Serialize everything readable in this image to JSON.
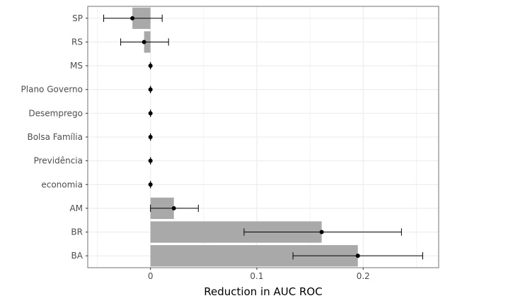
{
  "chart_data": {
    "type": "bar",
    "orientation": "horizontal",
    "title": "",
    "xlabel": "Reduction in AUC ROC",
    "ylabel": "",
    "xlim": [
      -0.059,
      0.271
    ],
    "x_ticks": [
      0,
      0.1,
      0.2
    ],
    "x_tick_labels": [
      "0",
      "0.1",
      "0.2"
    ],
    "grid": true,
    "categories": [
      "SP",
      "RS",
      "MS",
      "Plano Governo",
      "Desemprego",
      "Bolsa Família",
      "Previdência",
      "economia",
      "AM",
      "BR",
      "BA"
    ],
    "values": [
      -0.017,
      -0.006,
      0.0,
      0.0,
      0.0,
      0.0,
      0.0,
      0.0,
      0.022,
      0.161,
      0.195
    ],
    "error_low": [
      -0.044,
      -0.028,
      0.0,
      0.0,
      0.0,
      0.0,
      0.0,
      0.0,
      0.0,
      0.088,
      0.134
    ],
    "error_high": [
      0.011,
      0.017,
      0.0,
      0.0,
      0.0,
      0.0,
      0.0,
      0.0,
      0.045,
      0.236,
      0.256
    ],
    "colors": {
      "bar": "#a9a9a9",
      "point": "#000000",
      "grid": "#ebebeb",
      "panel_border": "#7f7f7f"
    }
  }
}
